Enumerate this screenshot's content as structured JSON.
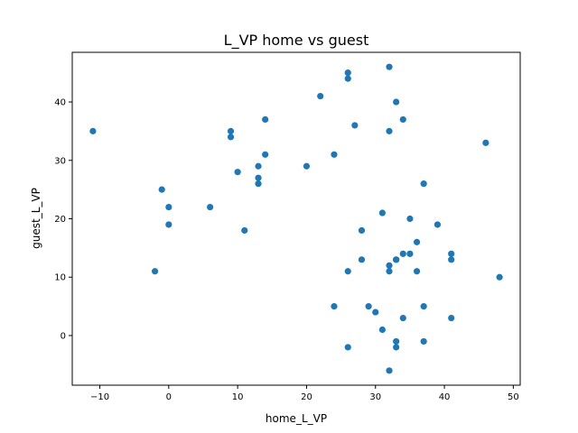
{
  "chart_data": {
    "type": "scatter",
    "title": "L_VP home vs guest",
    "xlabel": "home_L_VP",
    "ylabel": "guest_L_VP",
    "xlim": [
      -14.0,
      51.0
    ],
    "ylim": [
      -8.5,
      48.5
    ],
    "xticks": [
      -10,
      0,
      10,
      20,
      30,
      40,
      50
    ],
    "yticks": [
      0,
      10,
      20,
      30,
      40
    ],
    "grid": false,
    "legend": "none",
    "point_color": "#1f77b4",
    "x": [
      -11,
      -2,
      -1,
      0,
      0,
      6,
      9,
      9,
      10,
      11,
      13,
      13,
      13,
      14,
      14,
      20,
      22,
      24,
      24,
      26,
      26,
      26,
      26,
      27,
      28,
      28,
      29,
      30,
      31,
      31,
      32,
      32,
      32,
      32,
      32,
      33,
      33,
      33,
      33,
      33,
      34,
      34,
      34,
      35,
      35,
      36,
      36,
      37,
      37,
      37,
      39,
      41,
      41,
      41,
      46,
      48
    ],
    "y": [
      35,
      11,
      25,
      22,
      19,
      22,
      35,
      34,
      28,
      18,
      29,
      27,
      26,
      37,
      31,
      29,
      41,
      31,
      5,
      45,
      44,
      11,
      -2,
      36,
      18,
      13,
      5,
      4,
      21,
      1,
      46,
      35,
      12,
      11,
      -6,
      40,
      13,
      13,
      -1,
      -2,
      37,
      14,
      3,
      20,
      14,
      16,
      11,
      26,
      5,
      -1,
      19,
      14,
      13,
      3,
      33,
      10
    ]
  }
}
